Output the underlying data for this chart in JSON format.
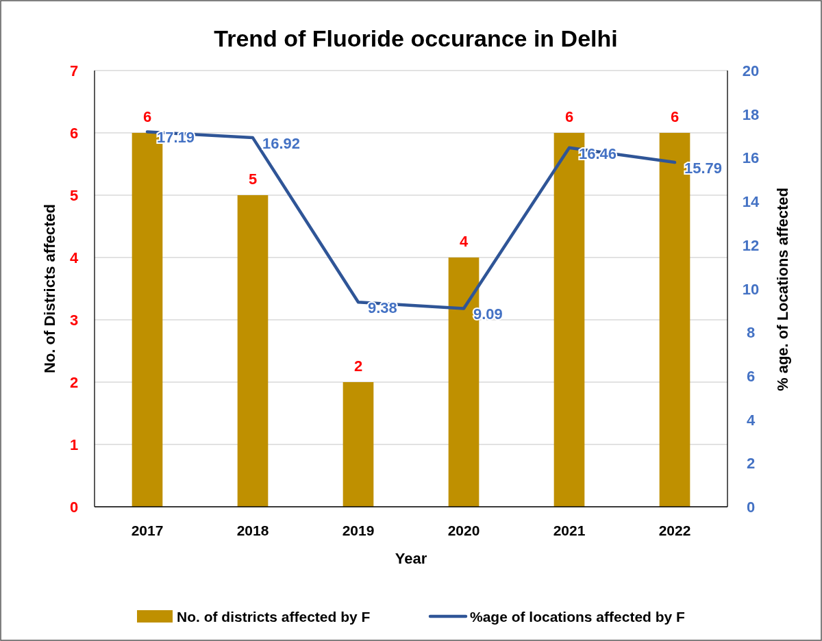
{
  "chart_data": {
    "type": "bar",
    "title": "Trend of Fluoride occurance in Delhi",
    "xlabel": "Year",
    "ylabel": "No. of Districts affected",
    "y2label": "% age. of Locations affected",
    "categories": [
      "2017",
      "2018",
      "2019",
      "2020",
      "2021",
      "2022"
    ],
    "series": [
      {
        "name": "No. of districts affected by F",
        "color": "#bf9000",
        "values": [
          6,
          5,
          2,
          4,
          6,
          6
        ]
      },
      {
        "name": "%age of locations affected by F",
        "type": "line",
        "axis": "y2",
        "color": "#2f5597",
        "values": [
          17.19,
          16.92,
          9.38,
          9.09,
          16.46,
          15.79
        ]
      }
    ],
    "ylim": [
      0,
      7
    ],
    "yticks": [
      0,
      1,
      2,
      3,
      4,
      5,
      6,
      7
    ],
    "y2lim": [
      0,
      20
    ],
    "y2ticks": [
      0,
      2,
      4,
      6,
      8,
      10,
      12,
      14,
      16,
      18,
      20
    ],
    "grid": "y",
    "legend": "bottom",
    "data_labels": true,
    "marker": "none",
    "line_style": "solid"
  }
}
